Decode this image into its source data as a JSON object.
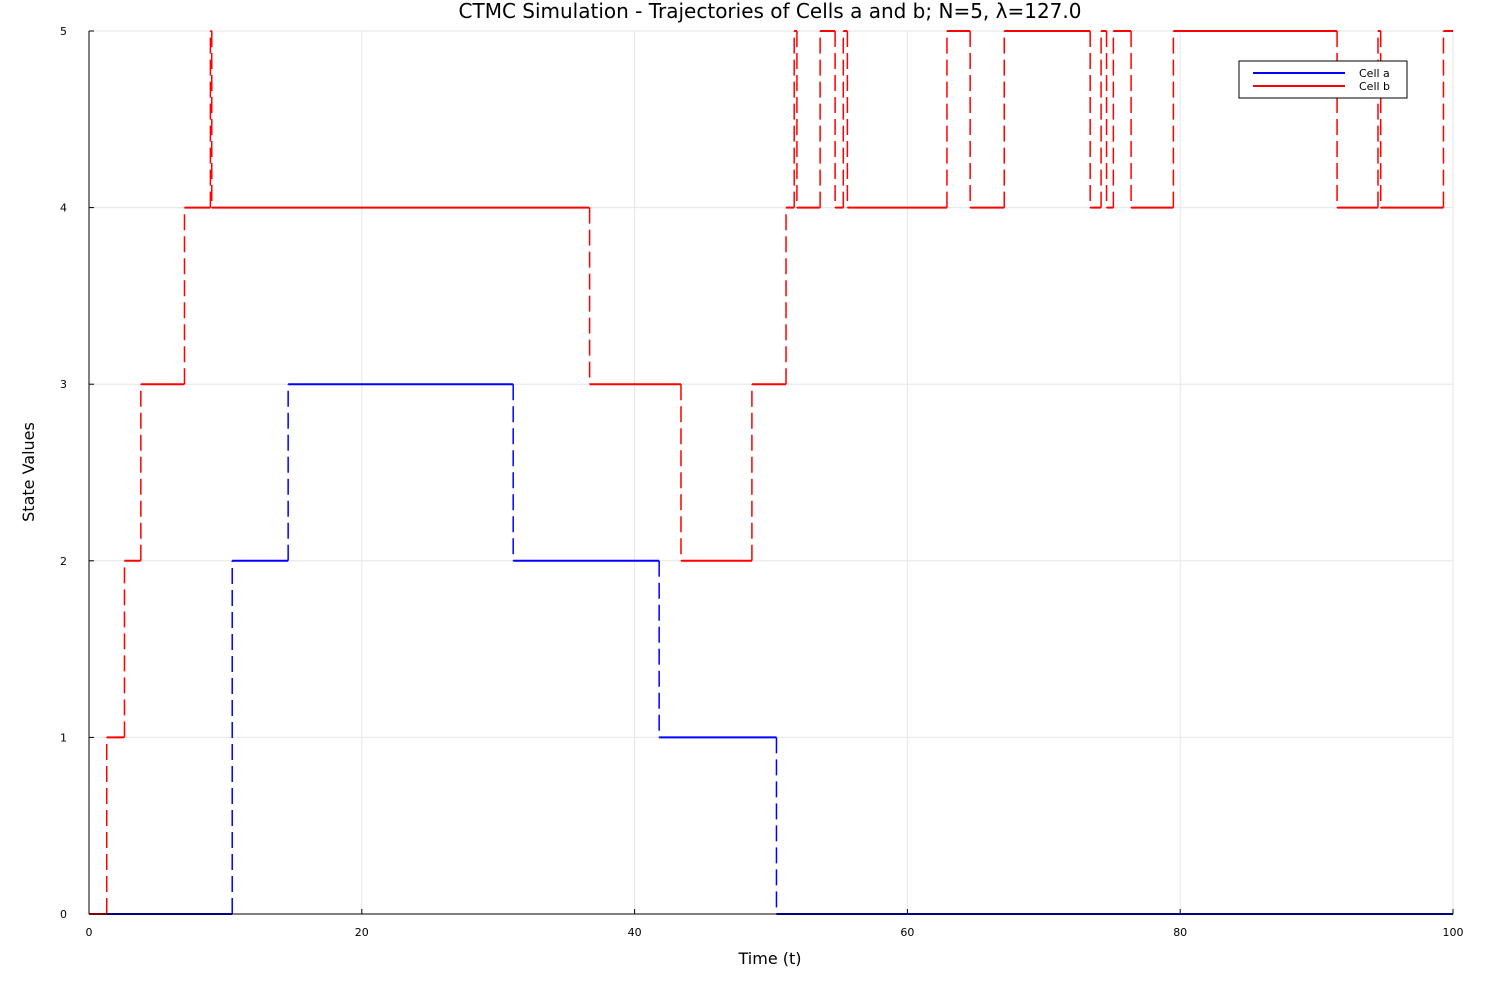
{
  "chart_data": {
    "type": "line",
    "title": "CTMC Simulation - Trajectories of Cells a and b; N=5, λ=127.0",
    "xlabel": "Time (t)",
    "ylabel": "State Values",
    "xlim": [
      0,
      100
    ],
    "ylim": [
      0,
      5
    ],
    "xticks": [
      0,
      20,
      40,
      60,
      80,
      100
    ],
    "xtick_labels": [
      "0",
      "20",
      "40",
      "60",
      "80",
      "100"
    ],
    "yticks": [
      0,
      1,
      2,
      3,
      4,
      5
    ],
    "ytick_labels": [
      "0",
      "1",
      "2",
      "3",
      "4",
      "5"
    ],
    "grid": true,
    "legend_position": "top-right",
    "step_style": "horizontal segments solid, vertical jumps dashed",
    "series": [
      {
        "name": "Cell a",
        "color": "#0000ff",
        "times": [
          0,
          10.5,
          14.6,
          31.1,
          41.8,
          50.4
        ],
        "states": [
          0,
          2,
          3,
          2,
          1,
          0
        ],
        "end_time": 100
      },
      {
        "name": "Cell b",
        "color": "#ff0000",
        "times": [
          0,
          1.3,
          2.6,
          3.8,
          7.0,
          8.9,
          9.0,
          36.7,
          43.4,
          48.6,
          51.1,
          51.7,
          51.9,
          53.6,
          54.7,
          55.3,
          55.6,
          56.0,
          62.9,
          64.6,
          67.1,
          73.4,
          74.2,
          74.6,
          75.1,
          76.4,
          79.5,
          91.5,
          94.5,
          94.7,
          99.3
        ],
        "states": [
          0,
          1,
          2,
          3,
          4,
          5,
          4,
          3,
          2,
          3,
          4,
          5,
          4,
          5,
          4,
          5,
          4,
          4,
          5,
          4,
          5,
          4,
          5,
          4,
          5,
          4,
          5,
          4,
          5,
          4,
          5
        ],
        "end_time": 100
      }
    ]
  }
}
